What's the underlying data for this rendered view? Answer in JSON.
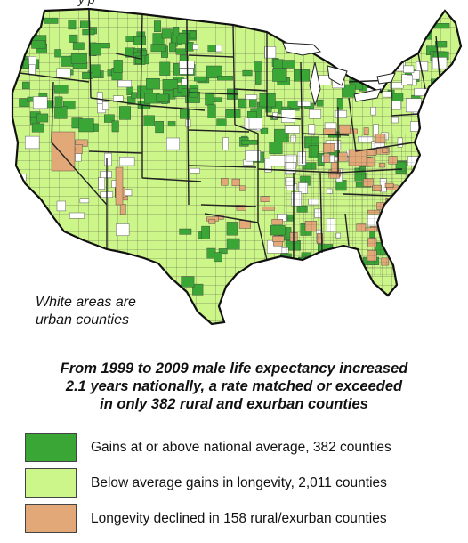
{
  "header": {
    "fragment": "y  p"
  },
  "map": {
    "note_lines": [
      "White areas are",
      "urban counties"
    ],
    "colors": {
      "above": "#3aa636",
      "below": "#ccf58a",
      "declined": "#e3a878",
      "urban": "#ffffff",
      "border": "#222222"
    }
  },
  "headline": {
    "lines": [
      "From 1999 to 2009 male life expectancy increased",
      "2.1 years nationally, a rate matched or exceeded",
      "in only 382 rural and exurban counties"
    ]
  },
  "legend": {
    "items": [
      {
        "label": "Gains at or above national average, 382 counties",
        "color": "#3aa636"
      },
      {
        "label": "Below average gains in longevity, 2,011 counties",
        "color": "#ccf58a"
      },
      {
        "label": "Longevity declined in 158 rural/exurban counties",
        "color": "#e3a878"
      }
    ]
  }
}
